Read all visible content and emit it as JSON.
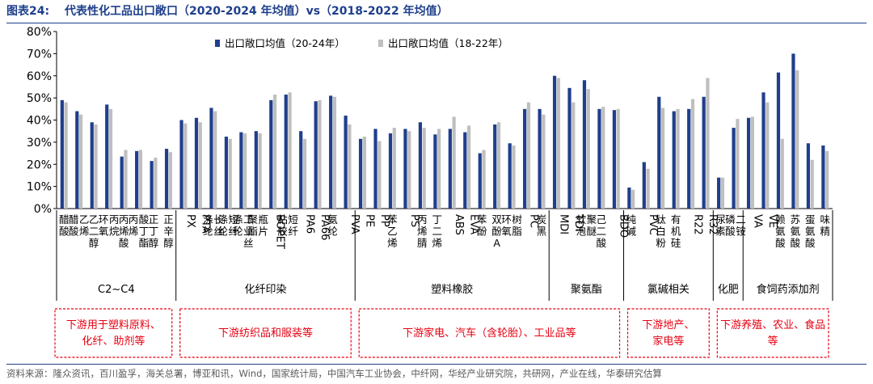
{
  "header": {
    "figure_label": "图表24:",
    "title": "代表性化工品出口敞口（2020-2024 年均值）vs（2018-2022 年均值）"
  },
  "source": "资料来源：隆众资讯，百川盈孚，海关总署，博亚和讯，Wind，国家统计局，中国汽车工业协会，中纤网，华经产业研究院，共研网，产业在线，华泰研究估算",
  "colors": {
    "series_a": "#1f3f8c",
    "series_b": "#bfbfbf",
    "title": "#1f3f8c",
    "note": "#e60012",
    "axis": "#595959"
  },
  "chart_data": {
    "type": "bar",
    "ylim": [
      0,
      80
    ],
    "yticks": [
      "0%",
      "10%",
      "20%",
      "30%",
      "40%",
      "50%",
      "60%",
      "70%",
      "80%"
    ],
    "legend_position": "top",
    "grid": false,
    "categories": [
      "醋酸",
      "醋酸乙烯",
      "乙二醇",
      "环氧丙烷",
      "丙烯酸",
      "丙烯酸丁酯",
      "正丁醇",
      "正辛醇",
      "PX",
      "PTA",
      "涤纶长丝",
      "涤纶短纤",
      "涤纶工业丝",
      "聚酯瓶片",
      "BOPET",
      "粘胶短纤",
      "PA6",
      "PA66",
      "氨纶",
      "PVA",
      "PE",
      "PP",
      "苯乙烯",
      "PS",
      "丙烯腈",
      "丁二烯",
      "ABS",
      "EVA",
      "苯酚",
      "双酚A",
      "环氧树脂",
      "PC",
      "炭黑",
      "MDI",
      "TDI",
      "软泡聚醚",
      "己二酸",
      "BDO",
      "纯碱",
      "PVC",
      "钛白粉",
      "有机硅",
      "R22",
      "R32",
      "尿素",
      "磷酸二铵",
      "VA",
      "VE",
      "赖氨酸",
      "苏氨酸",
      "蛋氨酸",
      "味精"
    ],
    "series": [
      {
        "name": "出口敞口均值（20-24年）",
        "values": [
          49,
          44,
          39,
          47,
          23.5,
          26,
          21.5,
          27,
          40,
          41,
          45.5,
          32.5,
          34.5,
          35,
          49,
          51.5,
          35,
          48.5,
          51,
          42,
          31.5,
          36,
          34,
          36,
          39,
          33.5,
          36,
          34.5,
          25,
          38,
          29.5,
          45,
          45,
          60,
          54.5,
          58,
          45,
          44.5,
          9.5,
          21,
          50.5,
          44,
          45,
          50.5,
          14,
          36.5,
          41,
          52.5,
          61.5,
          70,
          29.5,
          28.5
        ]
      },
      {
        "name": "出口敞口均值（18-22年）",
        "values": [
          48,
          42.5,
          38,
          45,
          26.5,
          26.5,
          23,
          25.5,
          38.5,
          39,
          44,
          31.5,
          34,
          34,
          51.5,
          52.5,
          31.5,
          49,
          50.5,
          38,
          32.5,
          30.5,
          36.5,
          35,
          36.5,
          36,
          41.5,
          37.5,
          26.5,
          39,
          28.5,
          48,
          42.5,
          59,
          48,
          54,
          46,
          45,
          8.5,
          18,
          45.5,
          45,
          49.5,
          59,
          14,
          40.5,
          41.5,
          48,
          31.5,
          62.5,
          22,
          26
        ]
      }
    ],
    "groups": [
      {
        "label": "C2~C4",
        "start": 0,
        "end": 7
      },
      {
        "label": "化纤印染",
        "start": 8,
        "end": 19
      },
      {
        "label": "塑料橡胶",
        "start": 20,
        "end": 32
      },
      {
        "label": "聚氨酯",
        "start": 33,
        "end": 37
      },
      {
        "label": "氯碱相关",
        "start": 38,
        "end": 43
      },
      {
        "label": "化肥",
        "start": 44,
        "end": 45
      },
      {
        "label": "食饲药添加剂",
        "start": 46,
        "end": 51
      }
    ],
    "notes": [
      {
        "lines": [
          "下游用于塑料原料、",
          "化纤、助剂等"
        ],
        "start": 0,
        "end": 7
      },
      {
        "lines": [
          "下游纺织品和服装等"
        ],
        "start": 8,
        "end": 19
      },
      {
        "lines": [
          "下游家电、汽车（含轮胎）、工业品等"
        ],
        "start": 20,
        "end": 37
      },
      {
        "lines": [
          "下游地产、",
          "家电等"
        ],
        "start": 38,
        "end": 43
      },
      {
        "lines": [
          "下游养殖、农业、食品",
          "等"
        ],
        "start": 44,
        "end": 51
      }
    ]
  }
}
